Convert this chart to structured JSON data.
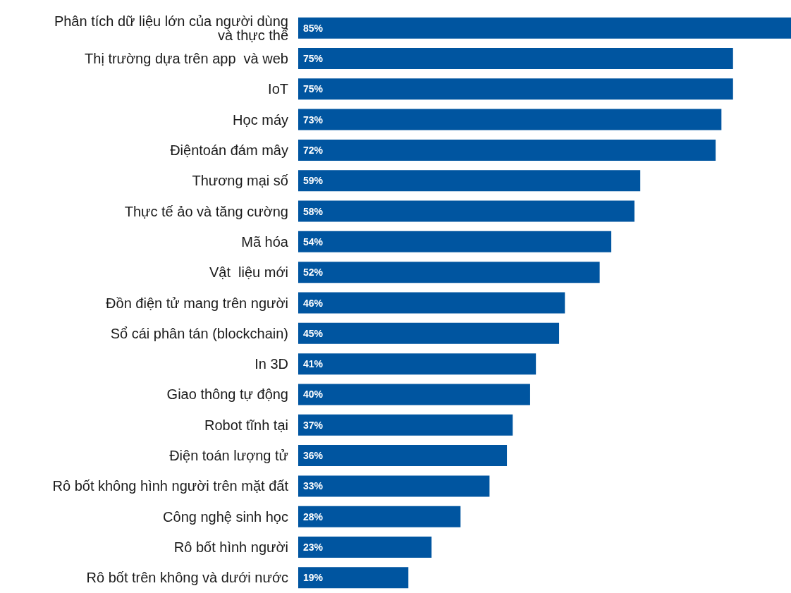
{
  "chart_data": {
    "type": "bar",
    "orientation": "horizontal",
    "categories": [
      "Phân tích dữ liệu lớn của người dùng\nvà thực thể",
      "Thị trường dựa trên app  và web",
      "IoT",
      "Học máy",
      "Điệntoán đám mây",
      "Thương mại số",
      "Thực tế ảo và tăng cường",
      "Mã hóa",
      "Vật  liệu mới",
      "Đồn điện tử mang trên người",
      "Sổ cái phân tán (blockchain)",
      "In 3D",
      "Giao thông tự động",
      "Robot tĩnh tại",
      "Điện toán lượng tử",
      "Rô bốt không hình người trên mặt đất",
      "Công nghệ sinh học",
      "Rô bốt hình người",
      "Rô bốt trên không và dưới nước"
    ],
    "values": [
      85,
      75,
      75,
      73,
      72,
      59,
      58,
      54,
      52,
      46,
      45,
      41,
      40,
      37,
      36,
      33,
      28,
      23,
      19
    ],
    "value_labels": [
      "85%",
      "75%",
      "75%",
      "73%",
      "72%",
      "59%",
      "58%",
      "54%",
      "52%",
      "46%",
      "45%",
      "41%",
      "40%",
      "37%",
      "36%",
      "33%",
      "28%",
      "23%",
      "19%"
    ],
    "color": "#0055a0"
  }
}
